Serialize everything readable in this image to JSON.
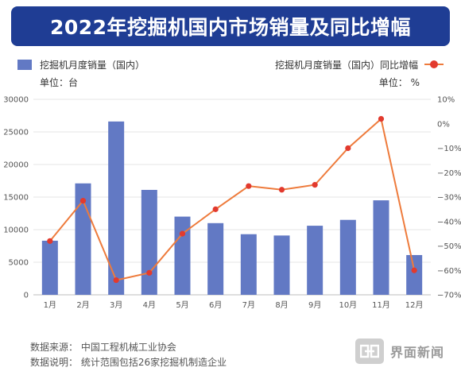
{
  "header": {
    "title": "2022年挖掘机国内市场销量及同比增幅"
  },
  "legend": {
    "bar_label": "挖掘机月度销量（国内）",
    "bar_unit": "单位：台",
    "line_label": "挖掘机月度销量（国内）同比增幅",
    "line_unit": "单位：  %"
  },
  "footer": {
    "source": "数据来源：  中国工程机械工业协会",
    "note": "数据说明：  统计范围包括26家挖掘机制造企业"
  },
  "brand": {
    "name": "界面新闻"
  },
  "colors": {
    "title_bg": "#1f3d94",
    "bar": "#6279c4",
    "line": "#ee7b3c",
    "marker": "#e23a2e"
  },
  "chart_data": {
    "type": "bar",
    "categories": [
      "1月",
      "2月",
      "3月",
      "4月",
      "5月",
      "6月",
      "7月",
      "8月",
      "9月",
      "10月",
      "11月",
      "12月"
    ],
    "series": [
      {
        "name": "挖掘机月度销量（国内）",
        "type": "bar",
        "axis": "left",
        "values": [
          8300,
          17100,
          26600,
          16100,
          12000,
          11000,
          9300,
          9100,
          10600,
          11500,
          14500,
          6100
        ]
      },
      {
        "name": "挖掘机月度销量（国内）同比增幅",
        "type": "line",
        "axis": "right",
        "values": [
          -48,
          -31.5,
          -64,
          -61,
          -45,
          -35,
          -25.5,
          -27,
          -25,
          -10,
          2,
          -60
        ]
      }
    ],
    "y_left": {
      "min": 0,
      "max": 30000,
      "ticks": [
        0,
        5000,
        10000,
        15000,
        20000,
        25000,
        30000
      ]
    },
    "y_right": {
      "min": -70,
      "max": 10,
      "ticks": [
        10,
        0,
        -10,
        -20,
        -30,
        -40,
        -50,
        -60,
        -70
      ],
      "tick_labels": [
        "10%",
        "0%",
        "−10%",
        "−20%",
        "−30%",
        "−40%",
        "−50%",
        "−60%",
        "−70%"
      ]
    },
    "grid": true,
    "legend_position": "top"
  }
}
